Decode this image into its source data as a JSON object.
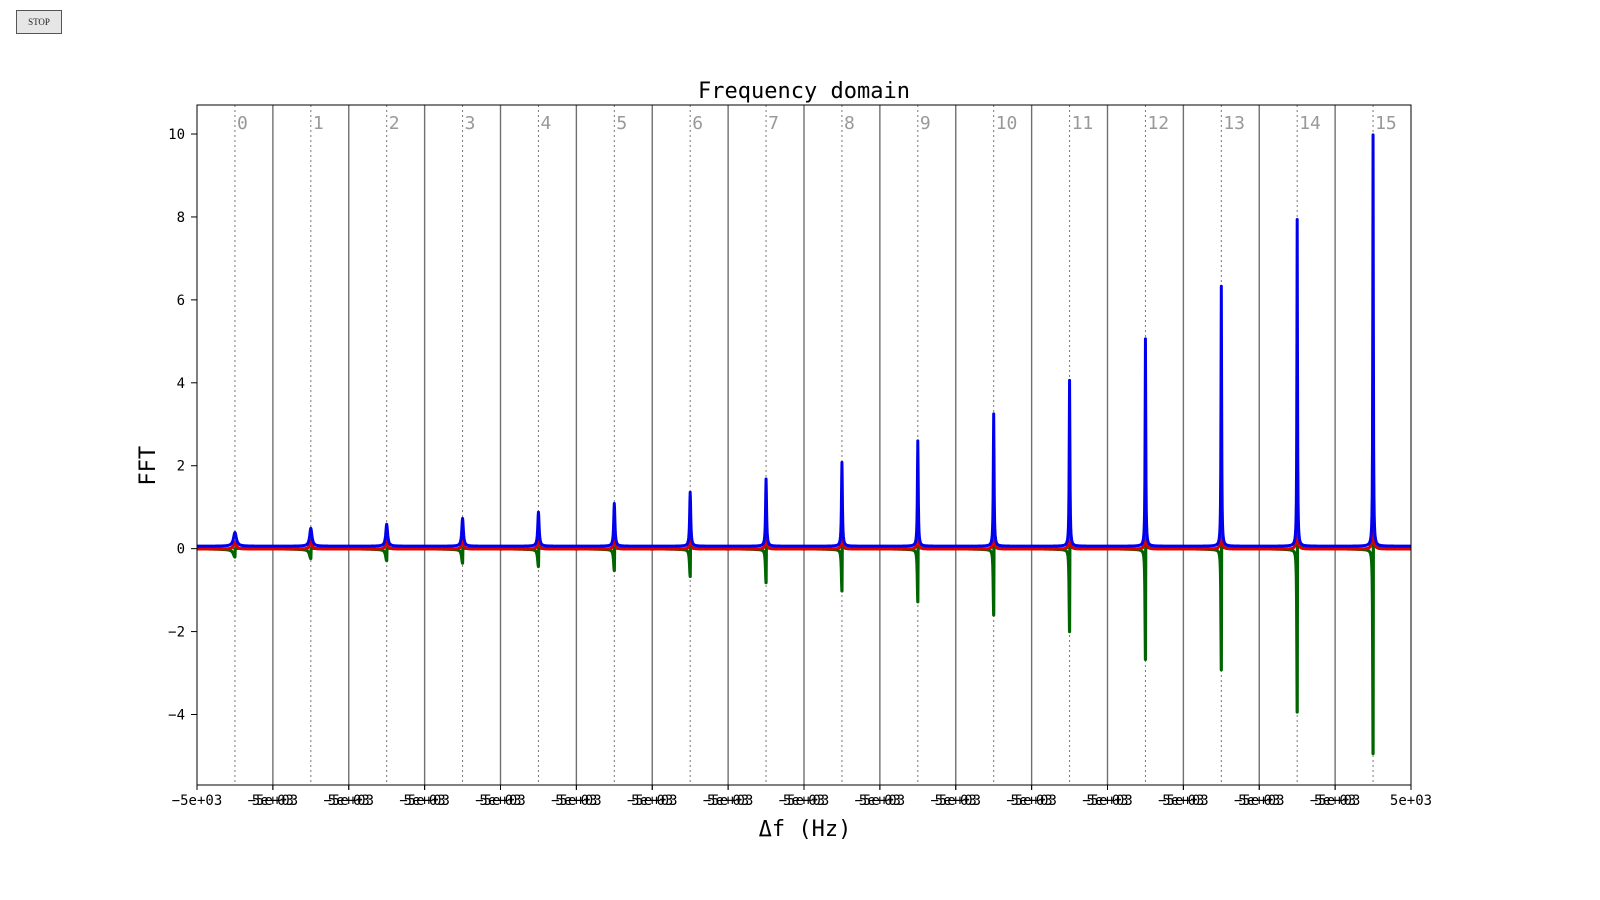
{
  "controls": {
    "stop_label": "STOP"
  },
  "colors": {
    "blue": "#0000ee",
    "red": "#dd0000",
    "green": "#006400",
    "divider": "#707070",
    "dotted": "#777777",
    "segment_label": "#999999"
  },
  "chart_data": {
    "type": "line",
    "title": "Frequency domain",
    "xlabel": "Δf  (Hz)",
    "ylabel": "FFT",
    "ylim": [
      -5.7,
      10.7
    ],
    "yticks": [
      -4,
      -2,
      0,
      2,
      4,
      6,
      8,
      10
    ],
    "ytick_labels": [
      "−4",
      "−2",
      "0",
      "2",
      "4",
      "6",
      "8",
      "10"
    ],
    "xtick_labels": [
      "−5e+03",
      "5e+03"
    ],
    "segments": [
      {
        "label": "0",
        "peak_blue": 0.33,
        "peak_red": 0.16,
        "min_green": -0.18
      },
      {
        "label": "1",
        "peak_blue": 0.43,
        "peak_red": 0.2,
        "min_green": -0.22
      },
      {
        "label": "2",
        "peak_blue": 0.53,
        "peak_red": 0.25,
        "min_green": -0.27
      },
      {
        "label": "3",
        "peak_blue": 0.67,
        "peak_red": 0.32,
        "min_green": -0.33
      },
      {
        "label": "4",
        "peak_blue": 0.82,
        "peak_red": 0.4,
        "min_green": -0.41
      },
      {
        "label": "5",
        "peak_blue": 1.03,
        "peak_red": 0.5,
        "min_green": -0.51
      },
      {
        "label": "6",
        "peak_blue": 1.3,
        "peak_red": 0.62,
        "min_green": -0.65
      },
      {
        "label": "7",
        "peak_blue": 1.62,
        "peak_red": 0.78,
        "min_green": -0.8
      },
      {
        "label": "8",
        "peak_blue": 2.02,
        "peak_red": 0.97,
        "min_green": -1.0
      },
      {
        "label": "9",
        "peak_blue": 2.54,
        "peak_red": 1.22,
        "min_green": -1.26
      },
      {
        "label": "10",
        "peak_blue": 3.19,
        "peak_red": 1.53,
        "min_green": -1.58
      },
      {
        "label": "11",
        "peak_blue": 4.0,
        "peak_red": 1.92,
        "min_green": -1.98
      },
      {
        "label": "12",
        "peak_blue": 5.0,
        "peak_red": 2.4,
        "min_green": -2.65
      },
      {
        "label": "13",
        "peak_blue": 6.27,
        "peak_red": 3.0,
        "min_green": -2.9
      },
      {
        "label": "14",
        "peak_blue": 7.88,
        "peak_red": 3.8,
        "min_green": -3.92
      },
      {
        "label": "15",
        "peak_blue": 9.92,
        "peak_red": 4.8,
        "min_green": -4.92
      }
    ],
    "series": [
      {
        "color": "blue"
      },
      {
        "color": "red"
      },
      {
        "color": "green"
      }
    ],
    "grid": false
  }
}
